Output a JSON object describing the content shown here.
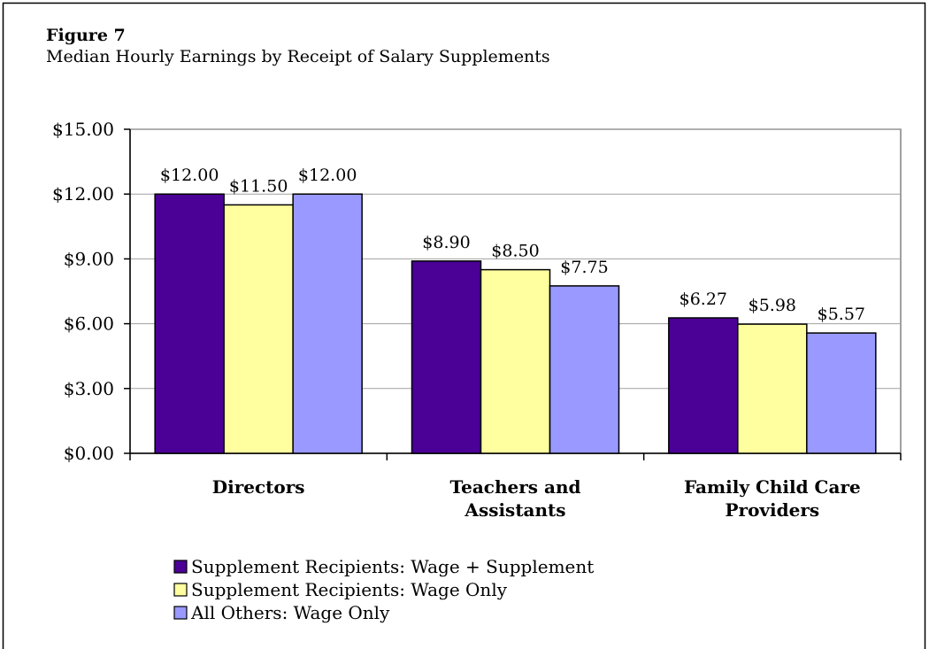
{
  "chart_data": {
    "type": "bar",
    "title": "Figure 7",
    "subtitle": "Median Hourly Earnings by Receipt of Salary Supplements",
    "categories": [
      "Directors",
      "Teachers and Assistants",
      "Family Child Care Providers"
    ],
    "series": [
      {
        "name": "Supplement Recipients: Wage + Supplement",
        "color": "#4b0096",
        "values": [
          12,
          8.9,
          6.27
        ],
        "value_labels": [
          "$12.00",
          "$8.90",
          "$6.27"
        ]
      },
      {
        "name": "Supplement Recipients: Wage Only",
        "color": "#ffffa0",
        "values": [
          11.5,
          8.5,
          5.98
        ],
        "value_labels": [
          "$11.50",
          "$8.50",
          "$5.98"
        ]
      },
      {
        "name": "All Others: Wage Only",
        "color": "#9999ff",
        "values": [
          12,
          7.75,
          5.57
        ],
        "value_labels": [
          "$12.00",
          "$7.75",
          "$5.57"
        ]
      }
    ],
    "ylim": [
      0,
      15
    ],
    "yticks": [
      {
        "value": 0,
        "label": "$0.00"
      },
      {
        "value": 3,
        "label": "$3.00"
      },
      {
        "value": 6,
        "label": "$6.00"
      },
      {
        "value": 9,
        "label": "$9.00"
      },
      {
        "value": 12,
        "label": "$12.00"
      },
      {
        "value": 15,
        "label": "$15.00"
      }
    ],
    "grid": true,
    "legend": "bottom"
  }
}
